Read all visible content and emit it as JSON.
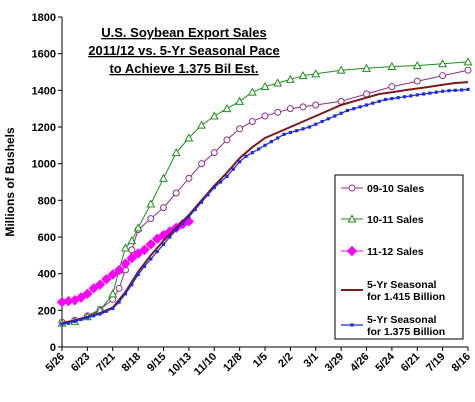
{
  "chart_data": {
    "type": "line",
    "title_lines": [
      "U.S. Soybean Export Sales",
      "2011/12 vs. 5-Yr Seasonal Pace",
      "to Achieve 1.375 Bil Est."
    ],
    "xlabel": "",
    "ylabel": "Millions of Bushels",
    "ylim": [
      0,
      1800
    ],
    "yticks": [
      0,
      200,
      400,
      600,
      800,
      1000,
      1200,
      1400,
      1600,
      1800
    ],
    "x_tick_labels": [
      "5/26",
      "6/23",
      "7/21",
      "8/18",
      "9/15",
      "10/13",
      "11/10",
      "12/8",
      "1/5",
      "2/2",
      "3/1",
      "3/29",
      "4/26",
      "5/24",
      "6/21",
      "7/19",
      "8/16"
    ],
    "grid": false,
    "legend_position": "right",
    "series": [
      {
        "name": "09-10 Sales",
        "color": "#8B2F8B",
        "marker": "circle-open",
        "x": [
          0,
          2,
          4,
          6,
          8,
          9,
          10,
          11,
          12,
          14,
          16,
          18,
          20,
          22,
          24,
          26,
          28,
          30,
          32,
          34,
          36,
          38,
          40,
          44,
          48,
          52,
          56,
          60,
          64
        ],
        "values": [
          135,
          145,
          170,
          205,
          260,
          320,
          420,
          530,
          640,
          700,
          760,
          840,
          920,
          1000,
          1060,
          1130,
          1190,
          1230,
          1260,
          1280,
          1300,
          1310,
          1320,
          1340,
          1380,
          1420,
          1450,
          1480,
          1510
        ]
      },
      {
        "name": "10-11 Sales",
        "color": "#1E8C1E",
        "marker": "triangle-open",
        "x": [
          0,
          2,
          4,
          6,
          8,
          9,
          10,
          11,
          12,
          14,
          16,
          18,
          20,
          22,
          24,
          26,
          28,
          30,
          32,
          34,
          36,
          38,
          40,
          44,
          48,
          52,
          56,
          60,
          64
        ],
        "values": [
          130,
          140,
          165,
          200,
          290,
          420,
          540,
          580,
          650,
          780,
          920,
          1060,
          1140,
          1210,
          1260,
          1300,
          1340,
          1390,
          1420,
          1440,
          1460,
          1480,
          1490,
          1510,
          1520,
          1530,
          1535,
          1545,
          1555
        ]
      },
      {
        "name": "11-12 Sales",
        "color": "#FF00FF",
        "marker": "diamond-filled",
        "x": [
          0,
          1,
          2,
          3,
          4,
          5,
          6,
          7,
          8,
          9,
          10,
          11,
          12,
          13,
          14,
          15,
          16,
          17,
          18,
          19,
          20
        ],
        "values": [
          245,
          250,
          255,
          270,
          290,
          320,
          340,
          370,
          395,
          420,
          455,
          485,
          510,
          530,
          560,
          590,
          610,
          630,
          650,
          670,
          685
        ]
      },
      {
        "name": "5-Yr Seasonal\nfor 1.415 Billion",
        "color": "#7A1A1A",
        "marker": "none",
        "x": [
          0,
          2,
          4,
          6,
          8,
          10,
          12,
          14,
          16,
          18,
          20,
          22,
          24,
          26,
          28,
          30,
          32,
          34,
          36,
          38,
          40,
          42,
          44,
          46,
          48,
          50,
          52,
          54,
          56,
          58,
          60,
          62,
          64
        ],
        "values": [
          130,
          145,
          165,
          185,
          215,
          300,
          410,
          500,
          580,
          650,
          720,
          800,
          880,
          950,
          1030,
          1090,
          1140,
          1170,
          1200,
          1230,
          1260,
          1290,
          1320,
          1340,
          1360,
          1380,
          1390,
          1400,
          1410,
          1420,
          1430,
          1440,
          1445
        ]
      },
      {
        "name": "5-Yr Seasonal\nfor 1.375 Billion",
        "color": "#1C2BE0",
        "marker": "square-small",
        "x": [
          0,
          1,
          2,
          3,
          4,
          5,
          6,
          7,
          8,
          9,
          10,
          11,
          12,
          13,
          14,
          15,
          16,
          17,
          18,
          19,
          20,
          21,
          22,
          23,
          24,
          25,
          26,
          27,
          28,
          29,
          30,
          31,
          32,
          33,
          34,
          35,
          36,
          37,
          38,
          39,
          40,
          41,
          42,
          43,
          44,
          45,
          46,
          47,
          48,
          49,
          50,
          51,
          52,
          53,
          54,
          55,
          56,
          57,
          58,
          59,
          60,
          61,
          62,
          63,
          64
        ],
        "values": [
          125,
          130,
          140,
          150,
          160,
          170,
          180,
          195,
          210,
          245,
          290,
          340,
          395,
          440,
          480,
          520,
          560,
          600,
          640,
          675,
          710,
          750,
          790,
          830,
          870,
          900,
          930,
          970,
          1010,
          1040,
          1060,
          1080,
          1100,
          1120,
          1140,
          1160,
          1170,
          1180,
          1190,
          1200,
          1215,
          1230,
          1245,
          1260,
          1275,
          1290,
          1300,
          1310,
          1320,
          1330,
          1340,
          1350,
          1355,
          1360,
          1365,
          1370,
          1375,
          1380,
          1385,
          1390,
          1395,
          1398,
          1400,
          1402,
          1405
        ]
      }
    ]
  }
}
